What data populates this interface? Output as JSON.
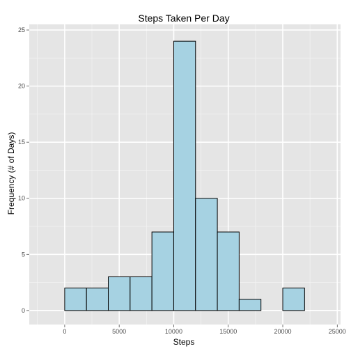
{
  "chart_data": {
    "type": "bar",
    "title": "Steps Taken Per Day",
    "xlabel": "Steps",
    "ylabel": "Frequency (# of Days)",
    "xlim": [
      -2000,
      24000
    ],
    "ylim": [
      0,
      25
    ],
    "bin_width": 2000,
    "bins": [
      {
        "x_start": -2000,
        "x_end": 0,
        "count": 0
      },
      {
        "x_start": 0,
        "x_end": 2000,
        "count": 2
      },
      {
        "x_start": 2000,
        "x_end": 4000,
        "count": 2
      },
      {
        "x_start": 4000,
        "x_end": 6000,
        "count": 3
      },
      {
        "x_start": 6000,
        "x_end": 8000,
        "count": 3
      },
      {
        "x_start": 8000,
        "x_end": 10000,
        "count": 7
      },
      {
        "x_start": 10000,
        "x_end": 12000,
        "count": 24
      },
      {
        "x_start": 12000,
        "x_end": 14000,
        "count": 10
      },
      {
        "x_start": 14000,
        "x_end": 16000,
        "count": 7
      },
      {
        "x_start": 16000,
        "x_end": 18000,
        "count": 1
      },
      {
        "x_start": 18000,
        "x_end": 20000,
        "count": 0
      },
      {
        "x_start": 20000,
        "x_end": 22000,
        "count": 2
      },
      {
        "x_start": 22000,
        "x_end": 24000,
        "count": 0
      }
    ],
    "x_ticks": [
      0,
      5000,
      10000,
      15000,
      20000,
      25000
    ],
    "y_ticks": [
      0,
      5,
      10,
      15,
      20,
      25
    ],
    "grid": true,
    "bar_fill": "#a6d2e2",
    "bar_stroke": "#000000",
    "panel_background": "#e5e5e5",
    "grid_major_color": "#ffffff",
    "grid_minor_color": "#f2f2f2"
  }
}
